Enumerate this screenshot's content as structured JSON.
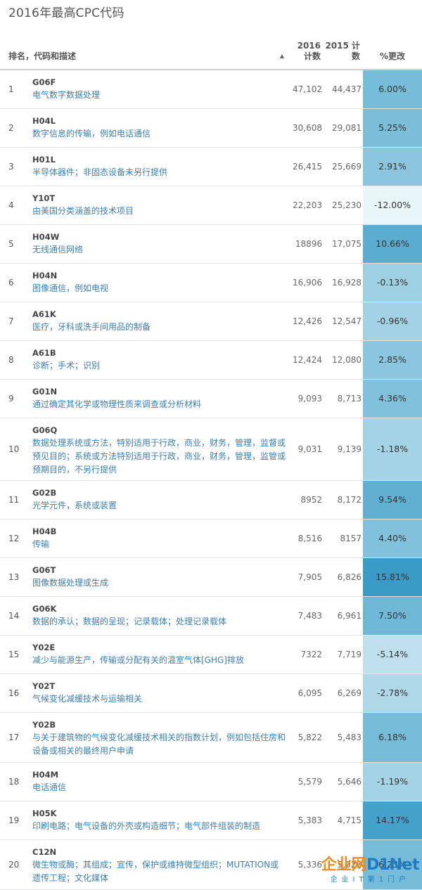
{
  "title": "2016年最高CPC代码",
  "headers": {
    "rank_desc": "排名，代码和描述",
    "y2016": "2016 计数",
    "y2015": "2015 计数",
    "pct": "%更改",
    "sort_icon": "▲"
  },
  "rows": [
    {
      "rank": "1",
      "code": "G06F",
      "desc": "电气数字数据处理",
      "c2016": "47,102",
      "c2015": "44,437",
      "pct": "6.00%",
      "pct_value": 6.0
    },
    {
      "rank": "2",
      "code": "H04L",
      "desc": "数字信息的传输，例如电话通信",
      "c2016": "30,608",
      "c2015": "29,081",
      "pct": "5.25%",
      "pct_value": 5.25
    },
    {
      "rank": "3",
      "code": "H01L",
      "desc": "半导体器件；非固态设备未另行提供",
      "c2016": "26,415",
      "c2015": "25,669",
      "pct": "2.91%",
      "pct_value": 2.91
    },
    {
      "rank": "4",
      "code": "Y10T",
      "desc": "由美国分类涵盖的技术项目",
      "c2016": "22,203",
      "c2015": "25,230",
      "pct": "-12.00%",
      "pct_value": -12.0
    },
    {
      "rank": "5",
      "code": "H04W",
      "desc": "无线通信网络",
      "c2016": "18896",
      "c2015": "17,075",
      "pct": "10.66%",
      "pct_value": 10.66
    },
    {
      "rank": "6",
      "code": "H04N",
      "desc": "图像通信，例如电视",
      "c2016": "16,906",
      "c2015": "16,928",
      "pct": "-0.13%",
      "pct_value": -0.13
    },
    {
      "rank": "7",
      "code": "A61K",
      "desc": "医疗，牙科或洗手间用品的制备",
      "c2016": "12,426",
      "c2015": "12,547",
      "pct": "-0.96%",
      "pct_value": -0.96
    },
    {
      "rank": "8",
      "code": "A61B",
      "desc": "诊断；手术；识别",
      "c2016": "12,424",
      "c2015": "12,080",
      "pct": "2.85%",
      "pct_value": 2.85
    },
    {
      "rank": "9",
      "code": "G01N",
      "desc": "通过确定其化学或物理性质来调查或分析材料",
      "c2016": "9,093",
      "c2015": "8,713",
      "pct": "4.36%",
      "pct_value": 4.36
    },
    {
      "rank": "10",
      "code": "G06Q",
      "desc": "数据处理系统或方法，特别适用于行政，商业，财务，管理，监督或预见目的；系统或方法特别适用于行政，商业，财务，管理，监管或预期目的，不另行提供",
      "c2016": "9,031",
      "c2015": "9,139",
      "pct": "-1.18%",
      "pct_value": -1.18
    },
    {
      "rank": "11",
      "code": "G02B",
      "desc": "光学元件，系统或装置",
      "c2016": "8952",
      "c2015": "8,172",
      "pct": "9.54%",
      "pct_value": 9.54
    },
    {
      "rank": "12",
      "code": "H04B",
      "desc": "传输",
      "c2016": "8,516",
      "c2015": "8157",
      "pct": "4.40%",
      "pct_value": 4.4
    },
    {
      "rank": "13",
      "code": "G06T",
      "desc": "图像数据处理或生成",
      "c2016": "7,905",
      "c2015": "6,826",
      "pct": "15.81%",
      "pct_value": 15.81
    },
    {
      "rank": "14",
      "code": "G06K",
      "desc": "数据的承认；数据的呈现；记录载体；处理记录载体",
      "c2016": "7,483",
      "c2015": "6,961",
      "pct": "7.50%",
      "pct_value": 7.5
    },
    {
      "rank": "15",
      "code": "Y02E",
      "desc": "减少与能源生产，传输或分配有关的温室气体[GHG]排放",
      "c2016": "7322",
      "c2015": "7,719",
      "pct": "-5.14%",
      "pct_value": -5.14
    },
    {
      "rank": "16",
      "code": "Y02T",
      "desc": "气候变化减缓技术与运输相关",
      "c2016": "6,095",
      "c2015": "6,269",
      "pct": "-2.78%",
      "pct_value": -2.78
    },
    {
      "rank": "17",
      "code": "Y02B",
      "desc": "与关于建筑物的气候变化减缓技术相关的指数计划，例如包括住房和设备或相关的最终用户申请",
      "c2016": "5,822",
      "c2015": "5,483",
      "pct": "6.18%",
      "pct_value": 6.18
    },
    {
      "rank": "18",
      "code": "H04M",
      "desc": "电话通信",
      "c2016": "5,579",
      "c2015": "5,646",
      "pct": "-1.19%",
      "pct_value": -1.19
    },
    {
      "rank": "19",
      "code": "H05K",
      "desc": "印刷电路；电气设备的外壳或构造细节；电气部件组装的制造",
      "c2016": "5,383",
      "c2015": "4,715",
      "pct": "14.17%",
      "pct_value": 14.17
    },
    {
      "rank": "20",
      "code": "C12N",
      "desc": "微生物或酶；其组成；宣传，保护或维持微型组织；MUTATION或遗传工程；文化媒体",
      "c2016": "5,336",
      "c2015": "5,023",
      "pct": "6.23%",
      "pct_value": 6.23
    }
  ],
  "watermark": {
    "main_a": "企业网",
    "main_b": "D1Net",
    "sub": "企业IT第1门户"
  },
  "colors": {
    "link_text": "#3b7fb1",
    "heat_low": "#e8f6f9",
    "heat_high": "#3a9cc6"
  }
}
